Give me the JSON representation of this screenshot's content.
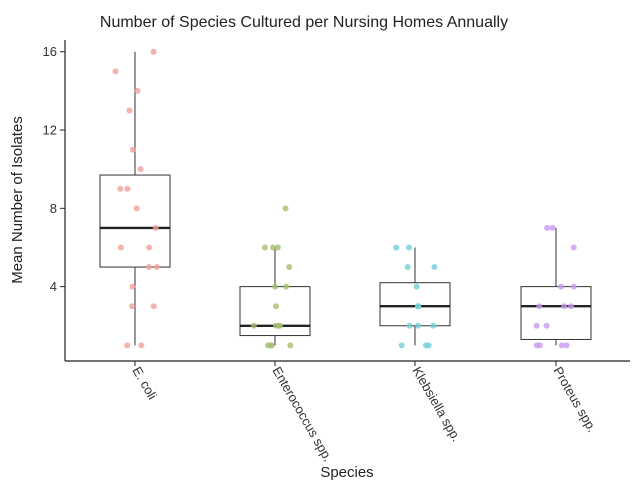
{
  "chart_data": {
    "type": "box",
    "title": "Number of Species Cultured per Nursing Homes Annually",
    "xlabel": "Species",
    "ylabel": "Mean Number of Isolates",
    "ylim": [
      0.2,
      16.6
    ],
    "yticks": [
      4,
      8,
      12,
      16
    ],
    "grid": false,
    "categories": [
      "E. coli",
      "Enterococcus spp.",
      "Klebsiella spp.",
      "Proteus spp."
    ],
    "boxes": [
      {
        "category": "E. coli",
        "min": 1,
        "q1": 5,
        "median": 7,
        "q3": 9.7,
        "max": 16
      },
      {
        "category": "Enterococcus spp.",
        "min": 1,
        "q1": 1.5,
        "median": 2,
        "q3": 4,
        "max": 6
      },
      {
        "category": "Klebsiella spp.",
        "min": 1,
        "q1": 2,
        "median": 3,
        "q3": 4.2,
        "max": 6
      },
      {
        "category": "Proteus spp.",
        "min": 1,
        "q1": 1.3,
        "median": 3,
        "q3": 4,
        "max": 7
      }
    ],
    "points": [
      {
        "category": "E. coli",
        "color": "#f4a09a",
        "values": [
          16,
          15,
          14,
          13,
          11,
          10,
          9,
          9,
          8,
          7,
          6,
          6,
          5,
          5,
          4,
          3,
          3,
          1,
          1
        ]
      },
      {
        "category": "Enterococcus spp.",
        "color": "#a5be6e",
        "values": [
          8,
          6,
          6,
          6,
          5,
          4,
          4,
          3,
          2,
          2,
          2,
          2,
          1,
          1,
          1,
          1
        ]
      },
      {
        "category": "Klebsiella spp.",
        "color": "#6fd0d6",
        "values": [
          6,
          6,
          5,
          5,
          4,
          3,
          3,
          3,
          2,
          2,
          2,
          1,
          1,
          1
        ]
      },
      {
        "category": "Proteus spp.",
        "color": "#c89af0",
        "values": [
          7,
          7,
          6,
          4,
          4,
          3,
          3,
          3,
          2,
          2,
          1,
          1,
          1,
          1
        ]
      }
    ]
  }
}
